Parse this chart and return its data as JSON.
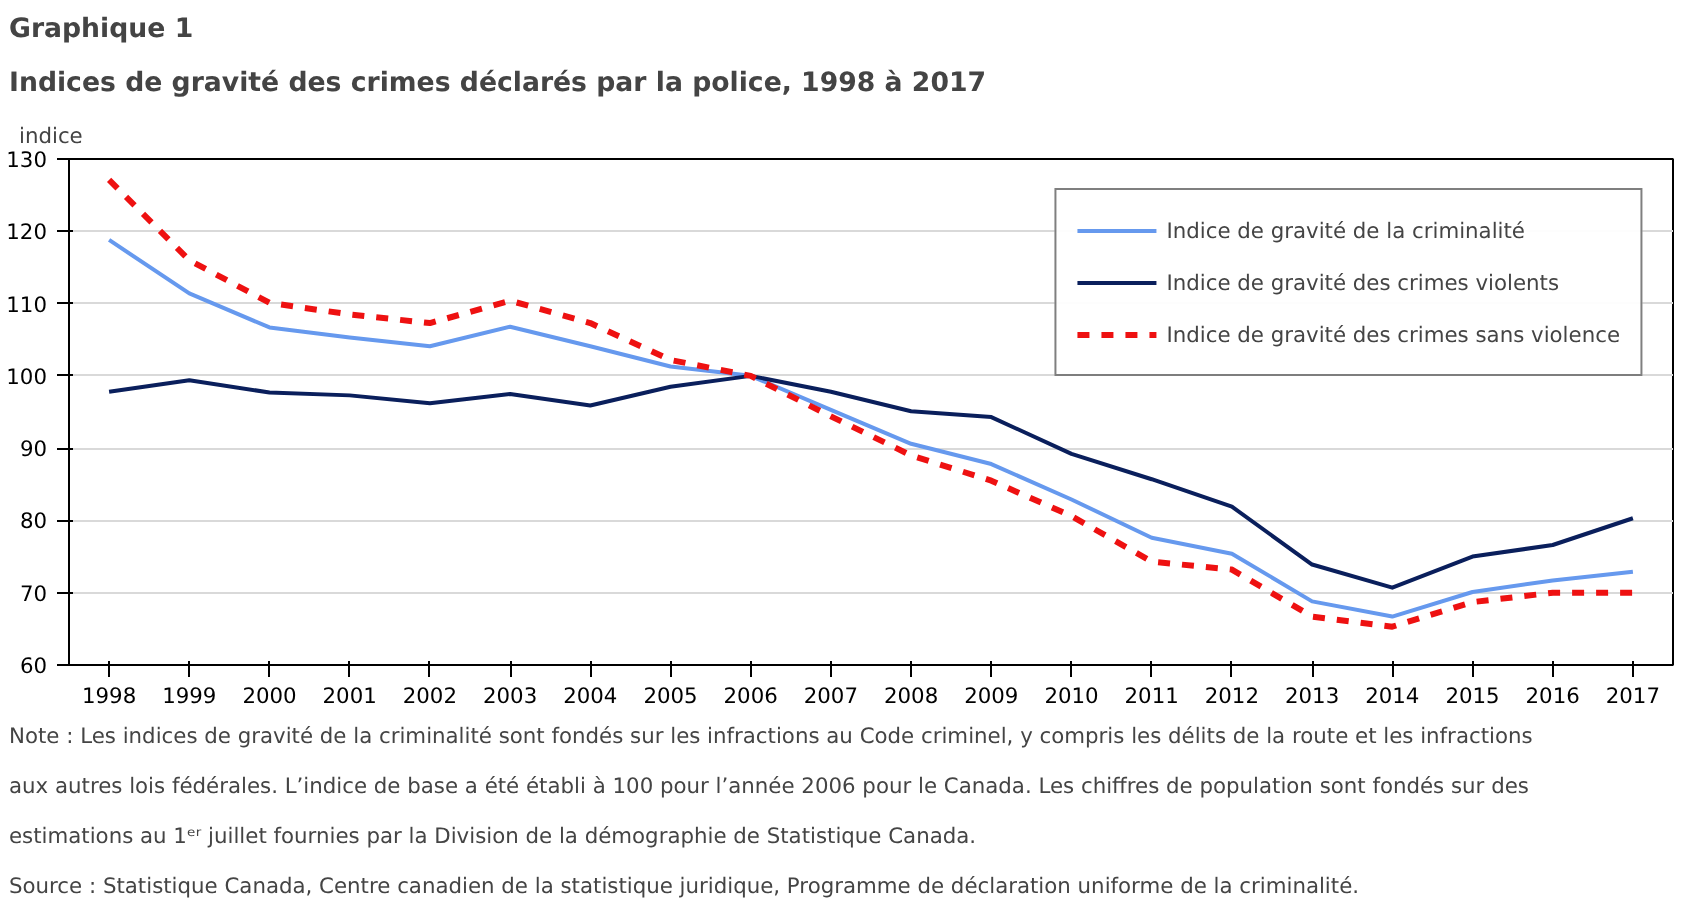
{
  "chart_data": {
    "type": "line",
    "title": "Graphique  1",
    "subtitle": "Indices de gravité des crimes déclarés par la police, 1998 à 2017",
    "ylabel": "indice",
    "categories": [
      "1998",
      "1999",
      "2000",
      "2001",
      "2002",
      "2003",
      "2004",
      "2005",
      "2006",
      "2007",
      "2008",
      "2009",
      "2010",
      "2011",
      "2012",
      "2013",
      "2014",
      "2015",
      "2016",
      "2017"
    ],
    "series": [
      {
        "name": "Indice de gravité de la criminalité",
        "color": "#6699ee",
        "line_style": "solid",
        "values": [
          118.8,
          111.4,
          106.7,
          105.3,
          104.1,
          106.8,
          104.1,
          101.3,
          100.0,
          95.3,
          90.6,
          87.8,
          82.9,
          77.6,
          75.4,
          68.8,
          66.7,
          70.1,
          71.7,
          72.9
        ]
      },
      {
        "name": "Indice de gravité des crimes violents",
        "color": "#0a1f5c",
        "line_style": "solid",
        "values": [
          97.8,
          99.4,
          97.7,
          97.3,
          96.2,
          97.5,
          95.9,
          98.5,
          100.0,
          97.8,
          95.1,
          94.3,
          89.2,
          85.7,
          81.9,
          73.9,
          70.7,
          75.0,
          76.6,
          80.3
        ]
      },
      {
        "name": "Indice de gravité des crimes sans violence",
        "color": "#ee1111",
        "line_style": "dashed",
        "values": [
          127.1,
          116.0,
          110.1,
          108.5,
          107.3,
          110.4,
          107.3,
          102.2,
          100.0,
          94.4,
          89.0,
          85.5,
          80.6,
          74.3,
          73.2,
          66.7,
          65.3,
          68.7,
          70.0,
          70.0
        ]
      }
    ],
    "ylim": [
      60,
      130
    ],
    "yticks": [
      60,
      70,
      80,
      90,
      100,
      110,
      120,
      130
    ],
    "grid": "y",
    "legend": "top right",
    "marker": "none",
    "annotations": [
      "Note : Les indices de gravité de la criminalité sont fondés sur les infractions au Code criminel, y compris les délits de la route et les infractions aux autres lois fédérales. L’indice de base a été établi à 100 pour l’année 2006 pour le Canada. Les chiffres de population sont fondés sur des estimations au 1ᵉʳ juillet fournies par la Division de la démographie de Statistique Canada.",
      "Source : Statistique Canada, Centre canadien de la statistique juridique, Programme de déclaration uniforme de la criminalité."
    ]
  }
}
